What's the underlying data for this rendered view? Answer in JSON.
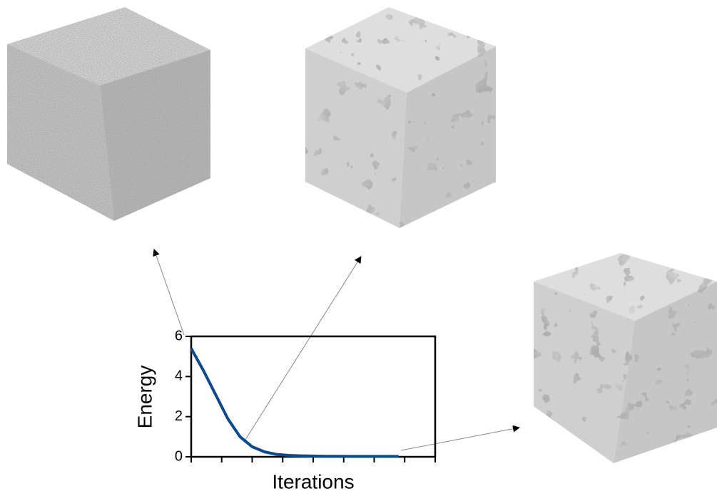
{
  "chart_data": {
    "type": "line",
    "x_label": "Iterations",
    "y_label": "Energy",
    "values": [
      5.4,
      4.3,
      3.1,
      1.9,
      1.0,
      0.5,
      0.25,
      0.12,
      0.07,
      0.05,
      0.04,
      0.03,
      0.03,
      0.02,
      0.02,
      0.02,
      0.02,
      0.02
    ],
    "color": "#0b4a8b",
    "ylim": [
      0,
      6
    ],
    "yticks": [
      0,
      2,
      4,
      6
    ]
  }
}
